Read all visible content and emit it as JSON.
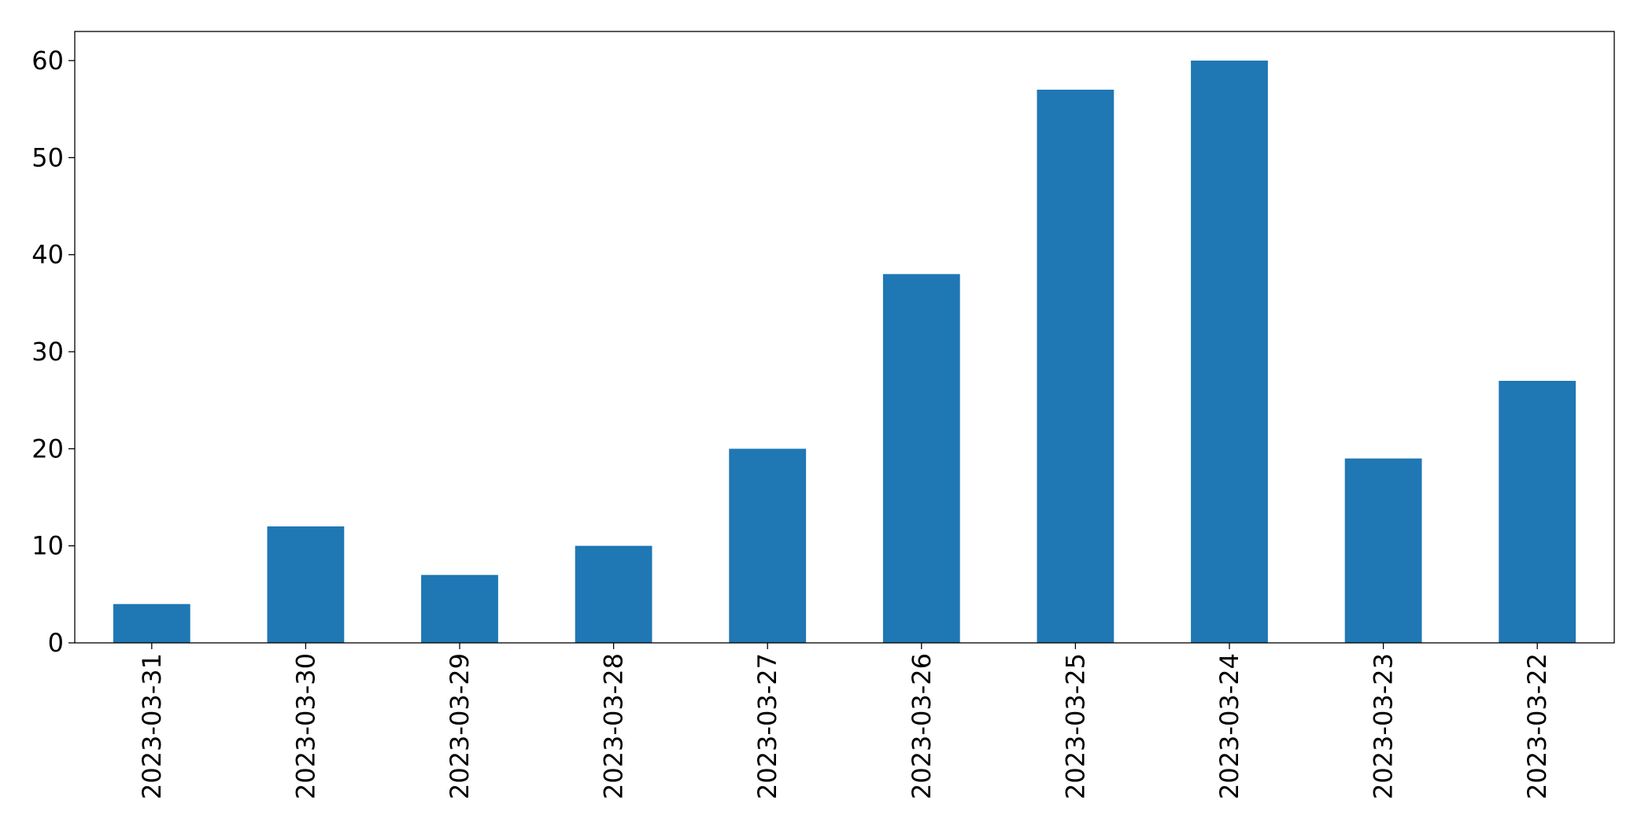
{
  "chart_data": {
    "type": "bar",
    "categories": [
      "2023-03-31",
      "2023-03-30",
      "2023-03-29",
      "2023-03-28",
      "2023-03-27",
      "2023-03-26",
      "2023-03-25",
      "2023-03-24",
      "2023-03-23",
      "2023-03-22"
    ],
    "values": [
      4,
      12,
      7,
      10,
      20,
      38,
      57,
      60,
      19,
      27
    ],
    "color": "#1f77b4",
    "ylim": [
      0,
      63
    ],
    "yticks": [
      0,
      10,
      20,
      30,
      40,
      50,
      60
    ],
    "grid": false
  }
}
